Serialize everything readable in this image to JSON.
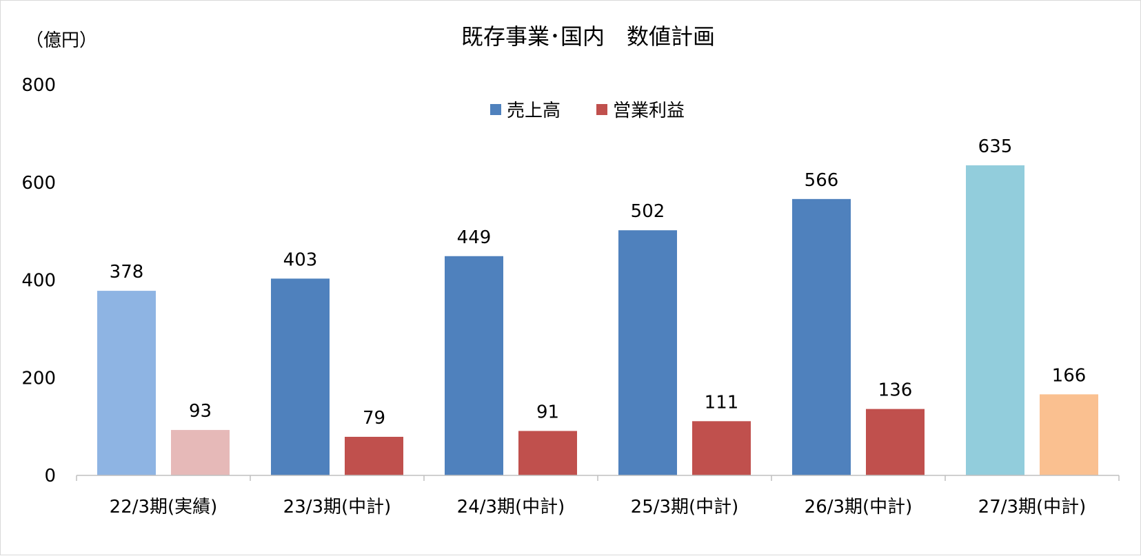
{
  "chart_data": {
    "type": "bar",
    "title": "既存事業･国内　数値計画",
    "unit_label": "（億円）",
    "categories": [
      "22/3期(実績)",
      "23/3期(中計)",
      "24/3期(中計)",
      "25/3期(中計)",
      "26/3期(中計)",
      "27/3期(中計)"
    ],
    "series": [
      {
        "name": "売上高",
        "color": "#4F81BD",
        "values": [
          378,
          403,
          449,
          502,
          566,
          635
        ],
        "point_colors": [
          "#8EB4E3",
          "#4F81BD",
          "#4F81BD",
          "#4F81BD",
          "#4F81BD",
          "#92CDDC"
        ]
      },
      {
        "name": "営業利益",
        "color": "#C0504D",
        "values": [
          93,
          79,
          91,
          111,
          136,
          166
        ],
        "point_colors": [
          "#E6B9B8",
          "#C0504D",
          "#C0504D",
          "#C0504D",
          "#C0504D",
          "#FAC090"
        ]
      }
    ],
    "yticks": [
      0,
      200,
      400,
      600,
      800
    ],
    "ylim": [
      0,
      800
    ],
    "grid": false,
    "legend_position": "top-center"
  }
}
